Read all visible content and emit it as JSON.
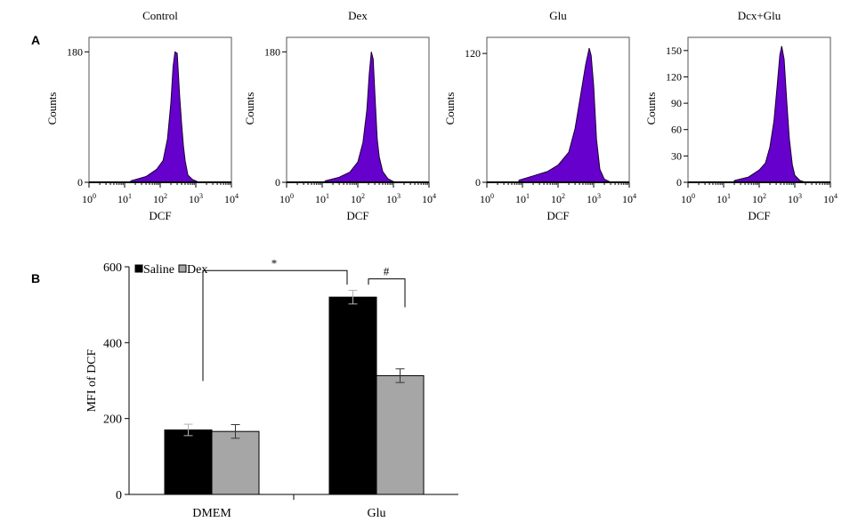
{
  "panel_a": {
    "label": "A",
    "xlabel": "DCF",
    "ylabel": "Counts",
    "x_ticks": [
      {
        "base": "10",
        "exp": "0"
      },
      {
        "base": "10",
        "exp": "1"
      },
      {
        "base": "10",
        "exp": "2"
      },
      {
        "base": "10",
        "exp": "3"
      },
      {
        "base": "10",
        "exp": "4"
      }
    ],
    "fill_color": "#6600cc"
  },
  "panel_b": {
    "label": "B",
    "significance": {
      "star": "*",
      "hash": "#"
    }
  },
  "chart_data": [
    {
      "type": "area",
      "title": "Control",
      "xlabel": "DCF",
      "ylabel": "Counts",
      "x_scale": "log",
      "xlim": [
        1,
        10000
      ],
      "ylim": [
        0,
        200
      ],
      "y_ticks": [
        0,
        180
      ],
      "x": [
        15,
        40,
        80,
        120,
        160,
        200,
        230,
        260,
        300,
        350,
        400,
        450,
        500,
        600,
        800,
        1000,
        1200
      ],
      "y": [
        2,
        8,
        18,
        30,
        60,
        110,
        160,
        180,
        178,
        120,
        80,
        50,
        30,
        10,
        4,
        2,
        0
      ]
    },
    {
      "type": "area",
      "title": "Dex",
      "xlabel": "DCF",
      "ylabel": "Counts",
      "x_scale": "log",
      "xlim": [
        1,
        10000
      ],
      "ylim": [
        0,
        200
      ],
      "y_ticks": [
        0,
        180
      ],
      "x": [
        12,
        30,
        60,
        100,
        140,
        180,
        210,
        240,
        270,
        310,
        350,
        400,
        500,
        700,
        1000,
        1400
      ],
      "y": [
        2,
        7,
        14,
        28,
        55,
        100,
        150,
        180,
        170,
        110,
        60,
        35,
        15,
        5,
        1,
        0
      ]
    },
    {
      "type": "area",
      "title": "Glu",
      "xlabel": "DCF",
      "ylabel": "Counts",
      "x_scale": "log",
      "xlim": [
        1,
        10000
      ],
      "ylim": [
        0,
        135
      ],
      "y_ticks": [
        0,
        120
      ],
      "x": [
        8,
        20,
        50,
        100,
        200,
        300,
        450,
        600,
        750,
        850,
        1000,
        1200,
        1500,
        2000,
        3000
      ],
      "y": [
        2,
        6,
        10,
        16,
        28,
        50,
        85,
        110,
        125,
        118,
        90,
        40,
        12,
        3,
        0
      ]
    },
    {
      "type": "area",
      "title": "Dcx+Glu",
      "xlabel": "DCF",
      "ylabel": "Counts",
      "x_scale": "log",
      "xlim": [
        1,
        10000
      ],
      "ylim": [
        0,
        165
      ],
      "y_ticks": [
        0,
        30,
        60,
        90,
        120,
        150
      ],
      "x": [
        20,
        50,
        100,
        150,
        200,
        260,
        320,
        380,
        430,
        500,
        600,
        700,
        850,
        1000,
        1400,
        2000
      ],
      "y": [
        2,
        6,
        14,
        22,
        40,
        70,
        110,
        145,
        155,
        140,
        90,
        50,
        20,
        8,
        2,
        0
      ]
    },
    {
      "type": "bar",
      "categories": [
        "DMEM",
        "Glu"
      ],
      "series": [
        {
          "name": "Saline",
          "values": [
            170,
            520
          ],
          "errors": [
            15,
            18
          ],
          "color": "#000000"
        },
        {
          "name": "Dex",
          "values": [
            166,
            313
          ],
          "errors": [
            18,
            18
          ],
          "color": "#a6a6a6"
        }
      ],
      "xlabel": "",
      "ylabel": "MFI of DCF",
      "ylim": [
        0,
        600
      ],
      "y_ticks": [
        0,
        200,
        400,
        600
      ],
      "legend": "top-left",
      "grid": false
    }
  ]
}
